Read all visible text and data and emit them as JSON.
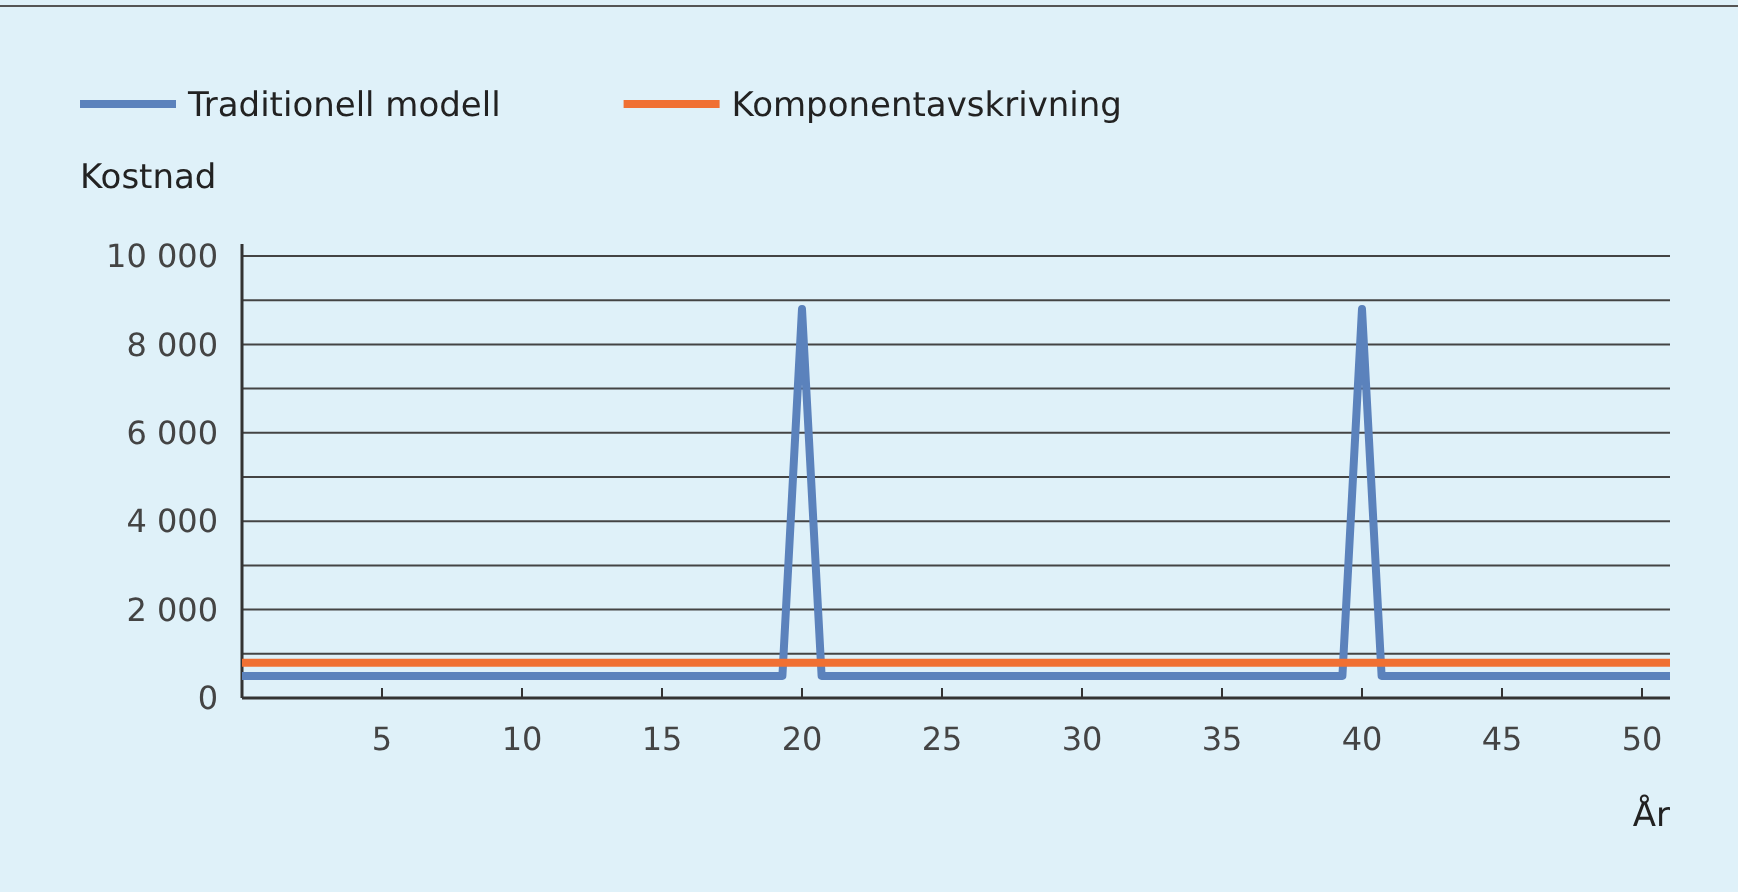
{
  "chart_data": {
    "type": "line",
    "xlabel": "År",
    "ylabel": "Kostnad",
    "xlim": [
      0,
      51
    ],
    "xticks": [
      5,
      10,
      15,
      20,
      25,
      30,
      35,
      40,
      45,
      50
    ],
    "ylim": [
      0,
      10000
    ],
    "yticks": [
      0,
      {
        "value": 1000,
        "label": null
      },
      {
        "value": 2000,
        "label": "2 000"
      },
      {
        "value": 3000,
        "label": null
      },
      {
        "value": 4000,
        "label": "4 000"
      },
      {
        "value": 5000,
        "label": null
      },
      {
        "value": 6000,
        "label": "6 000"
      },
      {
        "value": 7000,
        "label": null
      },
      {
        "value": 8000,
        "label": "8 000"
      },
      {
        "value": 9000,
        "label": null
      },
      {
        "value": 10000,
        "label": "10 000"
      }
    ],
    "grid": "y",
    "legend": "top left",
    "marker": "none",
    "line_style": "solid",
    "series": [
      {
        "name": "Traditionell modell",
        "color": "#5b82bc",
        "x": [
          0,
          19.3,
          20,
          20.7,
          39.3,
          40,
          40.7,
          51
        ],
        "values": [
          500,
          500,
          8800,
          500,
          500,
          8800,
          500,
          500
        ]
      },
      {
        "name": "Komponentavskrivning",
        "color": "#f07033",
        "x": [
          0,
          51
        ],
        "values": [
          800,
          800
        ]
      }
    ]
  }
}
